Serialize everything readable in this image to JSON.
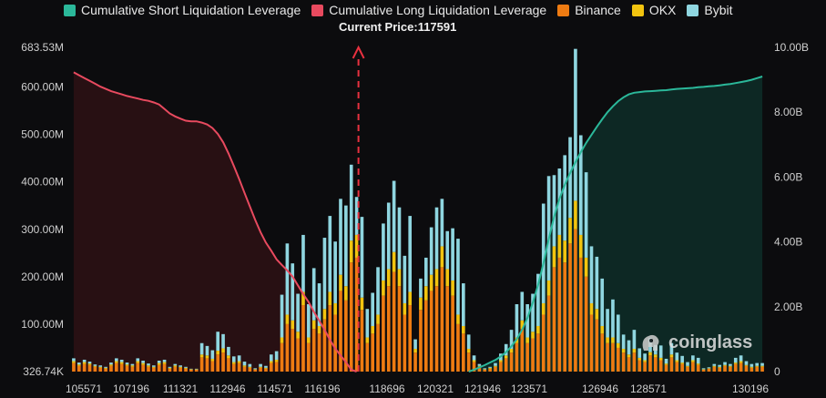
{
  "legend": {
    "short_label": "Cumulative Short Liquidation Leverage",
    "long_label": "Cumulative Long Liquidation Leverage",
    "binance_label": "Binance",
    "okx_label": "OKX",
    "bybit_label": "Bybit"
  },
  "colors": {
    "short": "#2bb89a",
    "long": "#e84a5f",
    "binance": "#ee7b12",
    "okx": "#f2c40f",
    "bybit": "#8fd6e0",
    "background": "#0c0c0e",
    "short_fill": "#0e2a26",
    "long_fill": "#2a1114"
  },
  "current_price_label": "Current Price:117591",
  "watermark": {
    "text": "coinglass",
    "icon": "coinglass-logo-icon"
  },
  "chart_data": {
    "type": "bar",
    "current_price": 117591,
    "left_axis": {
      "tick_labels": [
        "326.74K",
        "100.00M",
        "200.00M",
        "300.00M",
        "400.00M",
        "500.00M",
        "600.00M",
        "683.53M"
      ],
      "tick_values": [
        0.32674,
        100,
        200,
        300,
        400,
        500,
        600,
        683.53
      ],
      "unit": "M",
      "ylim": [
        0.32674,
        683.53
      ]
    },
    "right_axis": {
      "tick_labels": [
        "0",
        "2.00B",
        "4.00B",
        "6.00B",
        "8.00B",
        "10.00B"
      ],
      "tick_values": [
        0,
        2,
        4,
        6,
        8,
        10
      ],
      "unit": "B",
      "ylim": [
        0,
        10
      ]
    },
    "x_axis": {
      "tick_labels": [
        "105571",
        "107196",
        "111321",
        "112946",
        "114571",
        "116196",
        "118696",
        "120321",
        "121946",
        "123571",
        "126946",
        "128571",
        "130196"
      ],
      "tick_values": [
        105571,
        107196,
        111321,
        112946,
        114571,
        116196,
        118696,
        120321,
        121946,
        123571,
        126946,
        128571,
        130196
      ]
    },
    "bars": {
      "bin_count": 130,
      "binance": [
        18,
        12,
        16,
        14,
        10,
        8,
        6,
        12,
        18,
        16,
        12,
        10,
        18,
        14,
        10,
        8,
        14,
        16,
        6,
        10,
        8,
        6,
        4,
        4,
        30,
        28,
        22,
        36,
        40,
        28,
        16,
        18,
        10,
        8,
        4,
        8,
        6,
        18,
        20,
        60,
        100,
        90,
        70,
        140,
        60,
        90,
        80,
        110,
        140,
        120,
        170,
        150,
        230,
        240,
        130,
        60,
        80,
        100,
        160,
        180,
        210,
        180,
        120,
        140,
        40,
        130,
        150,
        170,
        180,
        220,
        180,
        160,
        100,
        80,
        40,
        20,
        10,
        4,
        6,
        10,
        20,
        28,
        40,
        60,
        90,
        60,
        70,
        80,
        120,
        160,
        220,
        240,
        230,
        270,
        300,
        240,
        200,
        120,
        110,
        80,
        60,
        60,
        50,
        40,
        30,
        40,
        24,
        20,
        34,
        30,
        24,
        14,
        30,
        20,
        16,
        10,
        20,
        14,
        4,
        6,
        10,
        8,
        12,
        10,
        16,
        18,
        12,
        8,
        10,
        10
      ],
      "okx": [
        4,
        3,
        4,
        3,
        2,
        2,
        2,
        3,
        4,
        4,
        3,
        3,
        4,
        4,
        3,
        2,
        4,
        4,
        2,
        3,
        2,
        2,
        1,
        1,
        6,
        6,
        5,
        8,
        9,
        6,
        4,
        4,
        3,
        2,
        1,
        2,
        2,
        4,
        5,
        12,
        20,
        18,
        14,
        28,
        12,
        18,
        16,
        22,
        28,
        24,
        34,
        30,
        46,
        48,
        26,
        12,
        16,
        20,
        32,
        36,
        42,
        36,
        24,
        28,
        8,
        26,
        30,
        34,
        36,
        44,
        36,
        32,
        20,
        16,
        8,
        4,
        2,
        1,
        2,
        2,
        4,
        6,
        8,
        12,
        18,
        12,
        14,
        16,
        24,
        32,
        44,
        48,
        46,
        54,
        60,
        48,
        40,
        24,
        22,
        16,
        12,
        12,
        10,
        8,
        6,
        8,
        5,
        4,
        7,
        6,
        5,
        3,
        6,
        4,
        3,
        2,
        4,
        3,
        1,
        1,
        2,
        2,
        2,
        2,
        3,
        4,
        2,
        2,
        2,
        2
      ],
      "bybit": [
        6,
        4,
        5,
        4,
        3,
        3,
        2,
        4,
        6,
        5,
        4,
        3,
        6,
        5,
        4,
        3,
        5,
        5,
        2,
        3,
        3,
        2,
        1,
        1,
        24,
        20,
        18,
        40,
        30,
        18,
        12,
        12,
        8,
        6,
        2,
        6,
        4,
        14,
        18,
        90,
        150,
        120,
        80,
        120,
        70,
        110,
        90,
        150,
        160,
        130,
        160,
        170,
        160,
        80,
        170,
        60,
        70,
        100,
        120,
        140,
        150,
        130,
        100,
        160,
        20,
        40,
        60,
        100,
        130,
        100,
        80,
        110,
        160,
        90,
        30,
        10,
        4,
        2,
        2,
        6,
        14,
        24,
        40,
        70,
        60,
        70,
        80,
        110,
        210,
        220,
        150,
        140,
        180,
        170,
        320,
        210,
        180,
        120,
        110,
        100,
        60,
        80,
        60,
        30,
        30,
        40,
        20,
        14,
        30,
        20,
        26,
        10,
        24,
        16,
        14,
        8,
        10,
        12,
        2,
        2,
        4,
        4,
        6,
        4,
        10,
        12,
        8,
        6,
        6,
        6
      ]
    },
    "cumulative_long_B": [
      9.23,
      9.14,
      9.05,
      8.97,
      8.88,
      8.79,
      8.72,
      8.65,
      8.6,
      8.55,
      8.5,
      8.46,
      8.42,
      8.38,
      8.35,
      8.3,
      8.24,
      8.1,
      7.96,
      7.87,
      7.8,
      7.74,
      7.72,
      7.72,
      7.68,
      7.62,
      7.51,
      7.33,
      7.07,
      6.73,
      6.34,
      5.94,
      5.51,
      5.09,
      4.68,
      4.3,
      3.98,
      3.73,
      3.46,
      3.29,
      3.12,
      2.93,
      2.66,
      2.39,
      2.15,
      1.84,
      1.57,
      1.29,
      0.98,
      0.71,
      0.5,
      0.29,
      0.06,
      0,
      0,
      0,
      0,
      0,
      0,
      0,
      0,
      0,
      0,
      0,
      0,
      0,
      0,
      0,
      0,
      0,
      0,
      0,
      0,
      0,
      0,
      0,
      0,
      0,
      0,
      0,
      0,
      0,
      0,
      0,
      0,
      0,
      0,
      0,
      0,
      0,
      0,
      0,
      0,
      0,
      0,
      0,
      0,
      0,
      0,
      0,
      0,
      0,
      0,
      0,
      0,
      0,
      0,
      0,
      0,
      0,
      0,
      0,
      0,
      0,
      0,
      0,
      0,
      0,
      0,
      0,
      0,
      0,
      0,
      0,
      0,
      0,
      0,
      0
    ],
    "cumulative_short_B": [
      0,
      0,
      0,
      0,
      0,
      0,
      0,
      0,
      0,
      0,
      0,
      0,
      0,
      0,
      0,
      0,
      0,
      0,
      0,
      0,
      0,
      0,
      0,
      0,
      0,
      0,
      0,
      0,
      0,
      0,
      0,
      0,
      0,
      0,
      0,
      0,
      0,
      0,
      0,
      0,
      0,
      0,
      0,
      0,
      0,
      0,
      0,
      0,
      0,
      0,
      0,
      0,
      0,
      0,
      0,
      0,
      0,
      0,
      0,
      0,
      0,
      0,
      0,
      0,
      0,
      0,
      0,
      0,
      0,
      0,
      0,
      0,
      0,
      0,
      0,
      0.06,
      0.13,
      0.2,
      0.28,
      0.36,
      0.47,
      0.6,
      0.78,
      1,
      1.29,
      1.66,
      2.12,
      2.68,
      3.34,
      4.09,
      4.78,
      5.33,
      5.76,
      6.13,
      6.46,
      6.77,
      7.05,
      7.3,
      7.55,
      7.78,
      8,
      8.18,
      8.34,
      8.46,
      8.55,
      8.6,
      8.62,
      8.64,
      8.65,
      8.66,
      8.67,
      8.68,
      8.7,
      8.72,
      8.73,
      8.74,
      8.75,
      8.77,
      8.78,
      8.8,
      8.81,
      8.83,
      8.85,
      8.87,
      8.9,
      8.93,
      8.96,
      9,
      9.05,
      9.1
    ]
  }
}
